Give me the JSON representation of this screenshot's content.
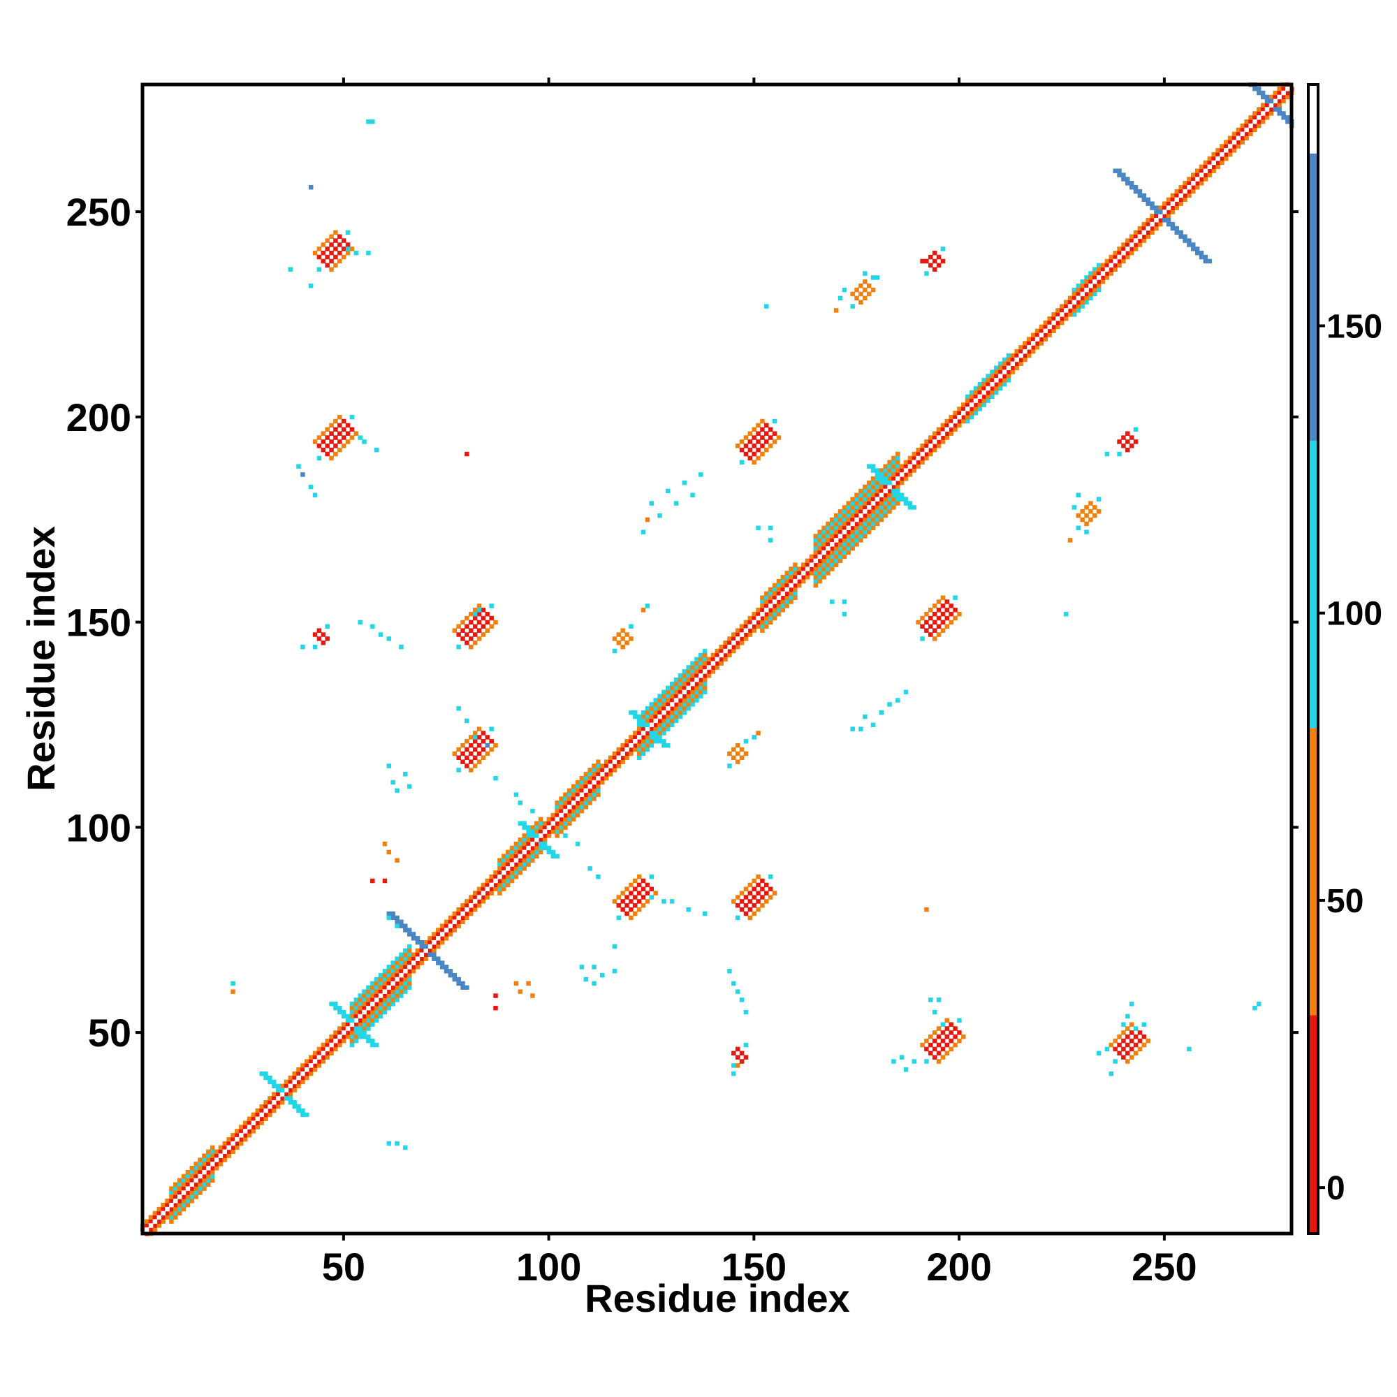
{
  "chart_data": {
    "type": "heatmap",
    "title": "",
    "xlabel": "Residue index",
    "ylabel": "Residue index",
    "xlim": [
      1,
      281
    ],
    "ylim": [
      1,
      281
    ],
    "x_ticks": [
      50,
      100,
      150,
      200,
      250
    ],
    "y_ticks": [
      50,
      100,
      150,
      200,
      250
    ],
    "x_tick_labels": [
      "50",
      "100",
      "150",
      "200",
      "250"
    ],
    "y_tick_labels": [
      "50",
      "100",
      "150",
      "200",
      "250"
    ],
    "grid": false,
    "colorbar": {
      "range": [
        -8,
        192
      ],
      "ticks": [
        0,
        50,
        100,
        150
      ],
      "tick_labels": [
        "0",
        "50",
        "100",
        "150"
      ],
      "bands": [
        {
          "from": -8,
          "to": 30,
          "color": "#e8160c"
        },
        {
          "from": 30,
          "to": 80,
          "color": "#f07f0c"
        },
        {
          "from": 80,
          "to": 130,
          "color": "#22d6e6"
        },
        {
          "from": 130,
          "to": 180,
          "color": "#4a86c2"
        },
        {
          "from": 180,
          "to": 192,
          "color": "#ffffff"
        }
      ]
    },
    "colors": {
      "red": "#e8160c",
      "orange": "#f07f0c",
      "cyan": "#22d6e6",
      "blue": "#4a86c2"
    },
    "diagonal": {
      "from": 1,
      "to": 281
    },
    "helix_segments": [
      {
        "from": 8,
        "to": 18,
        "width": 4
      },
      {
        "from": 28,
        "to": 34,
        "width": 2
      },
      {
        "from": 40,
        "to": 45,
        "width": 2
      },
      {
        "from": 52,
        "to": 66,
        "width": 5
      },
      {
        "from": 88,
        "to": 98,
        "width": 4
      },
      {
        "from": 102,
        "to": 112,
        "width": 4
      },
      {
        "from": 122,
        "to": 138,
        "width": 5
      },
      {
        "from": 152,
        "to": 160,
        "width": 4
      },
      {
        "from": 165,
        "to": 185,
        "width": 6
      },
      {
        "from": 202,
        "to": 212,
        "width": 3
      },
      {
        "from": 228,
        "to": 234,
        "width": 3
      }
    ],
    "crosses": [
      {
        "x": 35,
        "y": 35,
        "len": 5,
        "color": "cyan"
      },
      {
        "x": 52,
        "y": 52,
        "len": 5,
        "color": "cyan"
      },
      {
        "x": 70,
        "y": 70,
        "len": 9,
        "color": "blue"
      },
      {
        "x": 97,
        "y": 97,
        "len": 4,
        "color": "cyan"
      },
      {
        "x": 124,
        "y": 124,
        "len": 4,
        "color": "cyan"
      },
      {
        "x": 183,
        "y": 183,
        "len": 5,
        "color": "cyan"
      },
      {
        "x": 249,
        "y": 249,
        "len": 11,
        "color": "blue"
      },
      {
        "x": 276,
        "y": 276,
        "len": 7,
        "color": "blue"
      }
    ],
    "contact_blocks": [
      {
        "x": 45,
        "y": 238,
        "dx": 1,
        "dy": 1,
        "len": 6,
        "width": 2,
        "color": "red"
      },
      {
        "x": 45,
        "y": 192,
        "dx": 1,
        "dy": 1,
        "len": 7,
        "width": 2,
        "color": "red"
      },
      {
        "x": 79,
        "y": 146,
        "dx": 1,
        "dy": 1,
        "len": 7,
        "width": 2,
        "color": "red"
      },
      {
        "x": 79,
        "y": 116,
        "dx": 1,
        "dy": 1,
        "len": 7,
        "width": 2,
        "color": "red"
      },
      {
        "x": 118,
        "y": 80,
        "dx": 1,
        "dy": 1,
        "len": 7,
        "width": 2,
        "color": "red"
      },
      {
        "x": 147,
        "y": 80,
        "dx": 1,
        "dy": 1,
        "len": 7,
        "width": 2,
        "color": "red"
      },
      {
        "x": 148,
        "y": 191,
        "dx": 1,
        "dy": 1,
        "len": 7,
        "width": 2,
        "color": "red"
      },
      {
        "x": 192,
        "y": 148,
        "dx": 1,
        "dy": 1,
        "len": 7,
        "width": 2,
        "color": "red"
      },
      {
        "x": 193,
        "y": 45,
        "dx": 1,
        "dy": 1,
        "len": 7,
        "width": 2,
        "color": "red"
      },
      {
        "x": 239,
        "y": 45,
        "dx": 1,
        "dy": 1,
        "len": 6,
        "width": 2,
        "color": "red"
      },
      {
        "x": 175,
        "y": 229,
        "dx": 1,
        "dy": 1,
        "len": 4,
        "width": 1,
        "color": "orange"
      },
      {
        "x": 230,
        "y": 175,
        "dx": 1,
        "dy": 1,
        "len": 4,
        "width": 1,
        "color": "orange"
      },
      {
        "x": 193,
        "y": 237,
        "dx": 1,
        "dy": 1,
        "len": 3,
        "width": 1,
        "color": "red"
      },
      {
        "x": 240,
        "y": 193,
        "dx": 1,
        "dy": 1,
        "len": 3,
        "width": 1,
        "color": "red"
      },
      {
        "x": 117,
        "y": 145,
        "dx": 1,
        "dy": 1,
        "len": 3,
        "width": 1,
        "color": "orange"
      },
      {
        "x": 145,
        "y": 117,
        "dx": 1,
        "dy": 1,
        "len": 3,
        "width": 1,
        "color": "orange"
      },
      {
        "x": 44,
        "y": 146,
        "dx": 1,
        "dy": 1,
        "len": 2,
        "width": 1,
        "color": "red"
      },
      {
        "x": 146,
        "y": 44,
        "dx": 1,
        "dy": 1,
        "len": 2,
        "width": 1,
        "color": "red"
      }
    ],
    "scatter_cells": [
      {
        "x": 56,
        "y": 272,
        "color": "cyan"
      },
      {
        "x": 57,
        "y": 272,
        "color": "cyan"
      },
      {
        "x": 42,
        "y": 256,
        "color": "blue"
      },
      {
        "x": 37,
        "y": 236,
        "color": "cyan"
      },
      {
        "x": 42,
        "y": 232,
        "color": "cyan"
      },
      {
        "x": 51,
        "y": 241,
        "color": "cyan"
      },
      {
        "x": 53,
        "y": 240,
        "color": "cyan"
      },
      {
        "x": 56,
        "y": 240,
        "color": "cyan"
      },
      {
        "x": 39,
        "y": 188,
        "color": "cyan"
      },
      {
        "x": 40,
        "y": 186,
        "color": "blue"
      },
      {
        "x": 42,
        "y": 183,
        "color": "cyan"
      },
      {
        "x": 43,
        "y": 181,
        "color": "cyan"
      },
      {
        "x": 54,
        "y": 195,
        "color": "cyan"
      },
      {
        "x": 55,
        "y": 194,
        "color": "cyan"
      },
      {
        "x": 58,
        "y": 192,
        "color": "cyan"
      },
      {
        "x": 80,
        "y": 191,
        "color": "red"
      },
      {
        "x": 54,
        "y": 150,
        "color": "cyan"
      },
      {
        "x": 57,
        "y": 149,
        "color": "cyan"
      },
      {
        "x": 59,
        "y": 147,
        "color": "cyan"
      },
      {
        "x": 61,
        "y": 146,
        "color": "cyan"
      },
      {
        "x": 64,
        "y": 144,
        "color": "cyan"
      },
      {
        "x": 40,
        "y": 144,
        "color": "cyan"
      },
      {
        "x": 82,
        "y": 152,
        "color": "cyan"
      },
      {
        "x": 83,
        "y": 153,
        "color": "cyan"
      },
      {
        "x": 78,
        "y": 129,
        "color": "cyan"
      },
      {
        "x": 80,
        "y": 126,
        "color": "cyan"
      },
      {
        "x": 82,
        "y": 122,
        "color": "cyan"
      },
      {
        "x": 85,
        "y": 120,
        "color": "blue"
      },
      {
        "x": 61,
        "y": 115,
        "color": "cyan"
      },
      {
        "x": 62,
        "y": 111,
        "color": "cyan"
      },
      {
        "x": 63,
        "y": 109,
        "color": "cyan"
      },
      {
        "x": 65,
        "y": 113,
        "color": "cyan"
      },
      {
        "x": 66,
        "y": 110,
        "color": "cyan"
      },
      {
        "x": 60,
        "y": 96,
        "color": "orange"
      },
      {
        "x": 61,
        "y": 94,
        "color": "orange"
      },
      {
        "x": 63,
        "y": 92,
        "color": "orange"
      },
      {
        "x": 57,
        "y": 87,
        "color": "red"
      },
      {
        "x": 60,
        "y": 87,
        "color": "red"
      },
      {
        "x": 87,
        "y": 112,
        "color": "cyan"
      },
      {
        "x": 92,
        "y": 108,
        "color": "cyan"
      },
      {
        "x": 93,
        "y": 106,
        "color": "cyan"
      },
      {
        "x": 96,
        "y": 104,
        "color": "cyan"
      },
      {
        "x": 104,
        "y": 98,
        "color": "cyan"
      },
      {
        "x": 107,
        "y": 96,
        "color": "cyan"
      },
      {
        "x": 110,
        "y": 90,
        "color": "cyan"
      },
      {
        "x": 112,
        "y": 88,
        "color": "cyan"
      },
      {
        "x": 61,
        "y": 78,
        "color": "cyan"
      },
      {
        "x": 63,
        "y": 76,
        "color": "cyan"
      },
      {
        "x": 23,
        "y": 62,
        "color": "cyan"
      },
      {
        "x": 23,
        "y": 60,
        "color": "orange"
      },
      {
        "x": 87,
        "y": 59,
        "color": "red"
      },
      {
        "x": 87,
        "y": 56,
        "color": "red"
      },
      {
        "x": 92,
        "y": 62,
        "color": "orange"
      },
      {
        "x": 93,
        "y": 60,
        "color": "orange"
      },
      {
        "x": 95,
        "y": 62,
        "color": "orange"
      },
      {
        "x": 96,
        "y": 59,
        "color": "orange"
      },
      {
        "x": 108,
        "y": 66,
        "color": "cyan"
      },
      {
        "x": 109,
        "y": 63,
        "color": "cyan"
      },
      {
        "x": 111,
        "y": 66,
        "color": "cyan"
      },
      {
        "x": 113,
        "y": 64,
        "color": "cyan"
      },
      {
        "x": 116,
        "y": 65,
        "color": "cyan"
      },
      {
        "x": 116,
        "y": 71,
        "color": "cyan"
      },
      {
        "x": 111,
        "y": 62,
        "color": "cyan"
      },
      {
        "x": 125,
        "y": 83,
        "color": "cyan"
      },
      {
        "x": 128,
        "y": 82,
        "color": "cyan"
      },
      {
        "x": 130,
        "y": 82,
        "color": "cyan"
      },
      {
        "x": 134,
        "y": 80,
        "color": "cyan"
      },
      {
        "x": 138,
        "y": 79,
        "color": "cyan"
      },
      {
        "x": 144,
        "y": 65,
        "color": "cyan"
      },
      {
        "x": 145,
        "y": 62,
        "color": "cyan"
      },
      {
        "x": 146,
        "y": 60,
        "color": "cyan"
      },
      {
        "x": 147,
        "y": 58,
        "color": "cyan"
      },
      {
        "x": 148,
        "y": 55,
        "color": "cyan"
      },
      {
        "x": 145,
        "y": 40,
        "color": "cyan"
      },
      {
        "x": 146,
        "y": 42,
        "color": "orange"
      },
      {
        "x": 61,
        "y": 23,
        "color": "cyan"
      },
      {
        "x": 63,
        "y": 23,
        "color": "cyan"
      },
      {
        "x": 65,
        "y": 22,
        "color": "cyan"
      },
      {
        "x": 124,
        "y": 154,
        "color": "cyan"
      },
      {
        "x": 123,
        "y": 153,
        "color": "orange"
      },
      {
        "x": 150,
        "y": 122,
        "color": "cyan"
      },
      {
        "x": 151,
        "y": 123,
        "color": "orange"
      },
      {
        "x": 153,
        "y": 227,
        "color": "cyan"
      },
      {
        "x": 171,
        "y": 229,
        "color": "cyan"
      },
      {
        "x": 170,
        "y": 226,
        "color": "orange"
      },
      {
        "x": 177,
        "y": 235,
        "color": "cyan"
      },
      {
        "x": 180,
        "y": 234,
        "color": "cyan"
      },
      {
        "x": 172,
        "y": 231,
        "color": "cyan"
      },
      {
        "x": 191,
        "y": 238,
        "color": "red"
      },
      {
        "x": 124,
        "y": 175,
        "color": "orange"
      },
      {
        "x": 125,
        "y": 179,
        "color": "cyan"
      },
      {
        "x": 127,
        "y": 176,
        "color": "cyan"
      },
      {
        "x": 129,
        "y": 182,
        "color": "cyan"
      },
      {
        "x": 131,
        "y": 179,
        "color": "cyan"
      },
      {
        "x": 133,
        "y": 184,
        "color": "cyan"
      },
      {
        "x": 135,
        "y": 181,
        "color": "cyan"
      },
      {
        "x": 137,
        "y": 186,
        "color": "cyan"
      },
      {
        "x": 123,
        "y": 172,
        "color": "cyan"
      },
      {
        "x": 151,
        "y": 173,
        "color": "cyan"
      },
      {
        "x": 154,
        "y": 173,
        "color": "cyan"
      },
      {
        "x": 154,
        "y": 170,
        "color": "cyan"
      },
      {
        "x": 169,
        "y": 155,
        "color": "cyan"
      },
      {
        "x": 172,
        "y": 155,
        "color": "cyan"
      },
      {
        "x": 172,
        "y": 152,
        "color": "cyan"
      },
      {
        "x": 174,
        "y": 124,
        "color": "cyan"
      },
      {
        "x": 176,
        "y": 124,
        "color": "cyan"
      },
      {
        "x": 177,
        "y": 127,
        "color": "cyan"
      },
      {
        "x": 179,
        "y": 125,
        "color": "cyan"
      },
      {
        "x": 181,
        "y": 128,
        "color": "cyan"
      },
      {
        "x": 183,
        "y": 130,
        "color": "cyan"
      },
      {
        "x": 185,
        "y": 131,
        "color": "cyan"
      },
      {
        "x": 187,
        "y": 133,
        "color": "cyan"
      },
      {
        "x": 226,
        "y": 152,
        "color": "cyan"
      },
      {
        "x": 228,
        "y": 178,
        "color": "cyan"
      },
      {
        "x": 229,
        "y": 181,
        "color": "cyan"
      },
      {
        "x": 231,
        "y": 172,
        "color": "cyan"
      },
      {
        "x": 227,
        "y": 170,
        "color": "orange"
      },
      {
        "x": 236,
        "y": 191,
        "color": "cyan"
      },
      {
        "x": 192,
        "y": 80,
        "color": "orange"
      },
      {
        "x": 189,
        "y": 43,
        "color": "cyan"
      },
      {
        "x": 186,
        "y": 44,
        "color": "cyan"
      },
      {
        "x": 187,
        "y": 41,
        "color": "cyan"
      },
      {
        "x": 184,
        "y": 43,
        "color": "cyan"
      },
      {
        "x": 196,
        "y": 52,
        "color": "cyan"
      },
      {
        "x": 194,
        "y": 55,
        "color": "cyan"
      },
      {
        "x": 193,
        "y": 58,
        "color": "cyan"
      },
      {
        "x": 195,
        "y": 58,
        "color": "cyan"
      },
      {
        "x": 236,
        "y": 46,
        "color": "cyan"
      },
      {
        "x": 234,
        "y": 45,
        "color": "cyan"
      },
      {
        "x": 237,
        "y": 40,
        "color": "cyan"
      },
      {
        "x": 240,
        "y": 52,
        "color": "cyan"
      },
      {
        "x": 241,
        "y": 54,
        "color": "cyan"
      },
      {
        "x": 242,
        "y": 57,
        "color": "cyan"
      },
      {
        "x": 243,
        "y": 51,
        "color": "cyan"
      },
      {
        "x": 256,
        "y": 46,
        "color": "cyan"
      },
      {
        "x": 272,
        "y": 56,
        "color": "cyan"
      },
      {
        "x": 273,
        "y": 57,
        "color": "cyan"
      }
    ]
  }
}
